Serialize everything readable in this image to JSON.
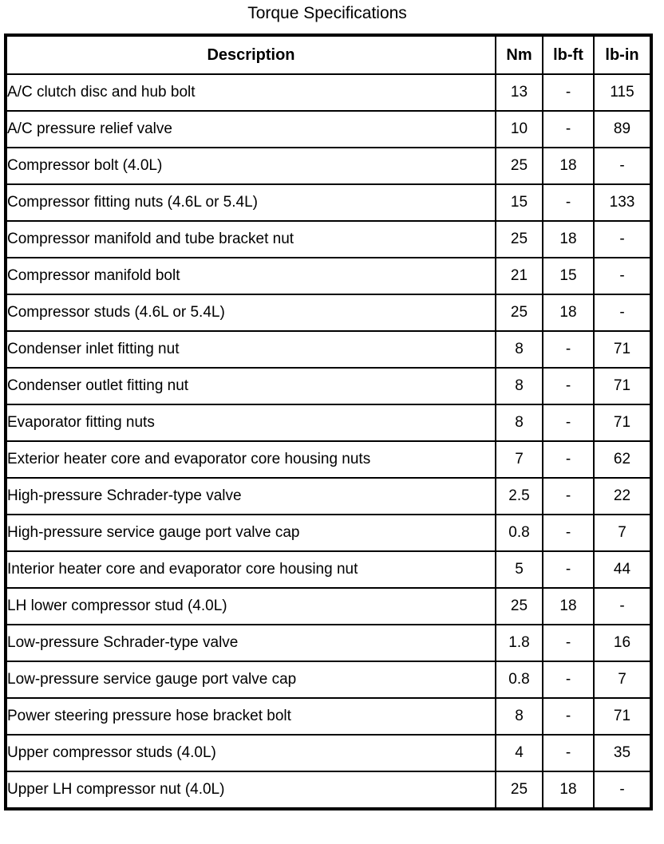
{
  "page": {
    "title": "Torque Specifications"
  },
  "table": {
    "columns": [
      "Description",
      "Nm",
      "lb-ft",
      "lb-in"
    ],
    "rows": [
      {
        "description": "A/C clutch disc and hub bolt",
        "nm": "13",
        "lb_ft": "-",
        "lb_in": "115"
      },
      {
        "description": "A/C pressure relief valve",
        "nm": "10",
        "lb_ft": "-",
        "lb_in": "89"
      },
      {
        "description": "Compressor bolt (4.0L)",
        "nm": "25",
        "lb_ft": "18",
        "lb_in": "-"
      },
      {
        "description": "Compressor fitting nuts (4.6L or 5.4L)",
        "nm": "15",
        "lb_ft": "-",
        "lb_in": "133"
      },
      {
        "description": "Compressor manifold and tube bracket nut",
        "nm": "25",
        "lb_ft": "18",
        "lb_in": "-"
      },
      {
        "description": "Compressor manifold bolt",
        "nm": "21",
        "lb_ft": "15",
        "lb_in": "-"
      },
      {
        "description": "Compressor studs (4.6L or 5.4L)",
        "nm": "25",
        "lb_ft": "18",
        "lb_in": "-"
      },
      {
        "description": "Condenser inlet fitting nut",
        "nm": "8",
        "lb_ft": "-",
        "lb_in": "71"
      },
      {
        "description": "Condenser outlet fitting nut",
        "nm": "8",
        "lb_ft": "-",
        "lb_in": "71"
      },
      {
        "description": "Evaporator fitting nuts",
        "nm": "8",
        "lb_ft": "-",
        "lb_in": "71"
      },
      {
        "description": "Exterior heater core and evaporator core housing nuts",
        "nm": "7",
        "lb_ft": "-",
        "lb_in": "62"
      },
      {
        "description": "High-pressure Schrader-type valve",
        "nm": "2.5",
        "lb_ft": "-",
        "lb_in": "22"
      },
      {
        "description": "High-pressure service gauge port valve cap",
        "nm": "0.8",
        "lb_ft": "-",
        "lb_in": "7"
      },
      {
        "description": "Interior heater core and evaporator core housing nut",
        "nm": "5",
        "lb_ft": "-",
        "lb_in": "44"
      },
      {
        "description": "LH lower compressor stud (4.0L)",
        "nm": "25",
        "lb_ft": "18",
        "lb_in": "-"
      },
      {
        "description": "Low-pressure Schrader-type valve",
        "nm": "1.8",
        "lb_ft": "-",
        "lb_in": "16"
      },
      {
        "description": "Low-pressure service gauge port valve cap",
        "nm": "0.8",
        "lb_ft": "-",
        "lb_in": "7"
      },
      {
        "description": "Power steering pressure hose bracket bolt",
        "nm": "8",
        "lb_ft": "-",
        "lb_in": "71"
      },
      {
        "description": "Upper compressor studs (4.0L)",
        "nm": "4",
        "lb_ft": "-",
        "lb_in": "35"
      },
      {
        "description": "Upper LH compressor nut (4.0L)",
        "nm": "25",
        "lb_ft": "18",
        "lb_in": "-"
      }
    ]
  }
}
